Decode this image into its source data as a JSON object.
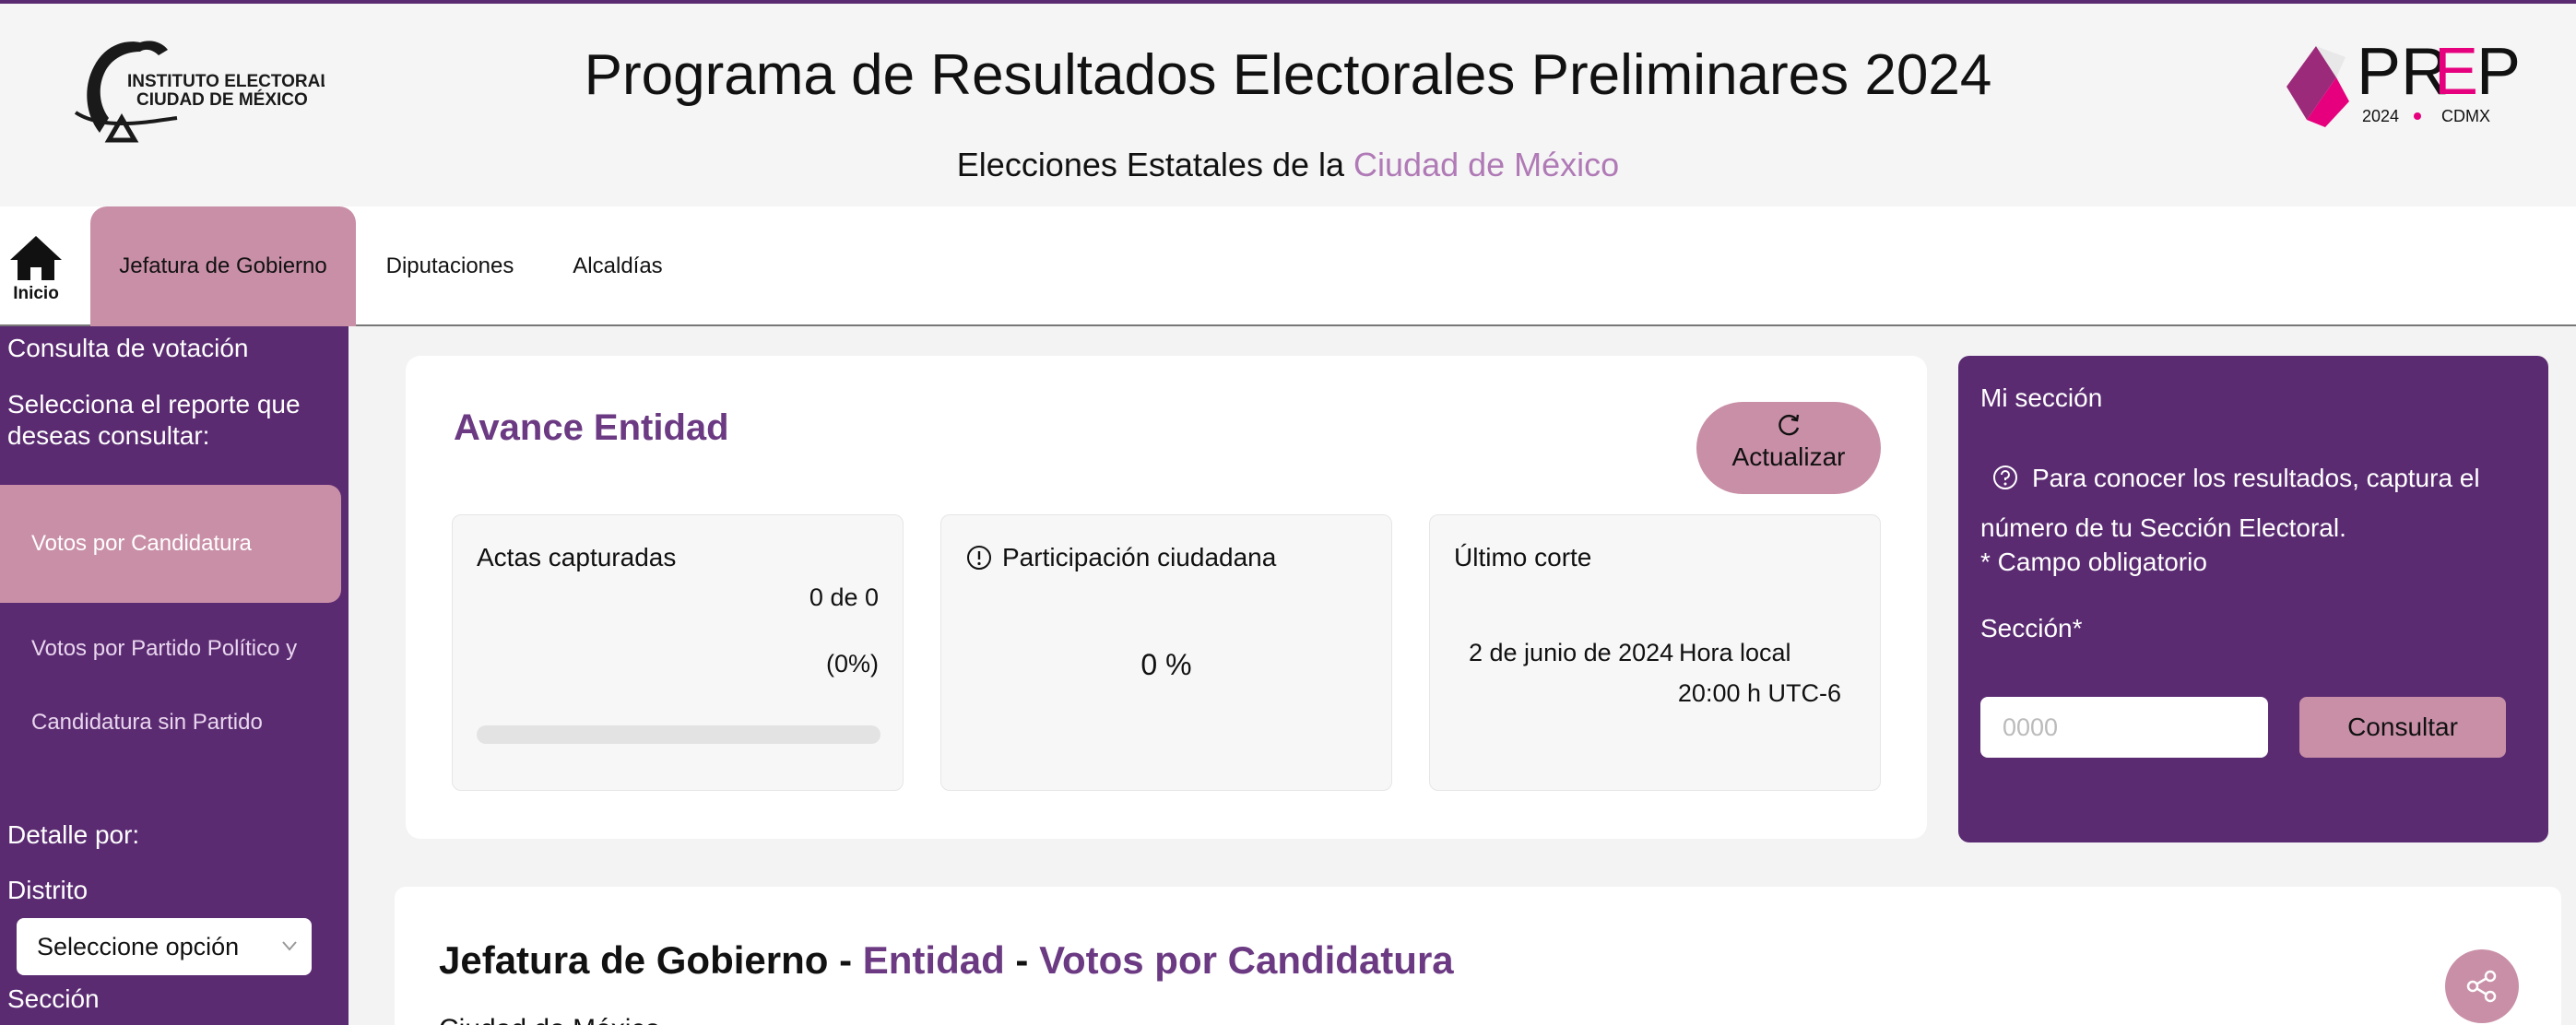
{
  "header": {
    "title": "Programa de Resultados Electorales Preliminares 2024",
    "subtitle_prefix": "Elecciones Estatales de la ",
    "subtitle_accent": "Ciudad de México",
    "iecm_logo": {
      "line1": "INSTITUTO ELECTORAL",
      "line2": "CIUDAD DE MÉXICO"
    },
    "prep_logo": {
      "word": "PREP",
      "year": "2024",
      "region": "CDMX"
    }
  },
  "nav": {
    "home_label": "Inicio",
    "tabs": [
      {
        "label": "Jefatura de Gobierno",
        "active": true
      },
      {
        "label": "Diputaciones",
        "active": false
      },
      {
        "label": "Alcaldías",
        "active": false
      }
    ]
  },
  "sidebar": {
    "title": "Consulta de votación",
    "prompt": "Selecciona el reporte que deseas consultar:",
    "items": [
      {
        "label": "Votos por Candidatura",
        "active": true
      },
      {
        "label": "Votos por Partido Político y"
      },
      {
        "label": "Candidatura sin Partido"
      }
    ],
    "detail_label": "Detalle por:",
    "distrito_label": "Distrito",
    "distrito_select": "Seleccione opción",
    "seccion_label": "Sección"
  },
  "avance": {
    "title": "Avance Entidad",
    "refresh_label": "Actualizar",
    "actas": {
      "label": "Actas capturadas",
      "value": "0 de 0",
      "percent": "(0%)",
      "progress": 0
    },
    "participacion": {
      "label": "Participación ciudadana",
      "value": "0 %"
    },
    "corte": {
      "label": "Último corte",
      "date": "2 de junio de 2024",
      "time_label": "Hora local",
      "time": "20:00 h UTC-6"
    }
  },
  "mi_seccion": {
    "title": "Mi sección",
    "info": "Para conocer los resultados, captura el número de tu Sección Electoral.",
    "required_note": "* Campo obligatorio",
    "field_label": "Sección*",
    "placeholder": "0000",
    "button_label": "Consultar"
  },
  "results": {
    "title_prefix": "Jefatura de Gobierno - ",
    "title_entity": "Entidad",
    "title_sep": " - ",
    "title_report": "Votos por Candidatura",
    "subtitle": "Ciudad de México"
  },
  "colors": {
    "purple": "#5b2b72",
    "accent_purple": "#6b3a83",
    "pink": "#c98fa7",
    "light_pink_text": "#b07ab6",
    "prep_magenta": "#e6007e"
  }
}
